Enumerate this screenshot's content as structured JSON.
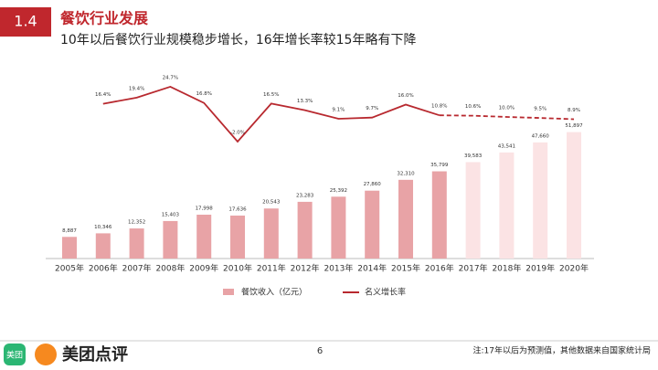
{
  "header": {
    "section": "1.4",
    "title": "餐饮行业发展",
    "subtitle": "10年以后餐饮行业规模稳步增长，16年增长率较15年略有下降"
  },
  "chart_data": {
    "type": "bar",
    "categories": [
      "2005年",
      "2006年",
      "2007年",
      "2008年",
      "2009年",
      "2010年",
      "2011年",
      "2012年",
      "2013年",
      "2014年",
      "2015年",
      "2016年",
      "2017年",
      "2018年",
      "2019年",
      "2020年"
    ],
    "ylim": [
      0,
      60000
    ],
    "y2lim": [
      -30,
      30
    ],
    "series": [
      {
        "name": "餐饮收入（亿元）",
        "color": "#e8a3a6",
        "colors": [
          "#e8a3a6",
          "#e8a3a6",
          "#e8a3a6",
          "#e8a3a6",
          "#e8a3a6",
          "#e8a3a6",
          "#e8a3a6",
          "#e8a3a6",
          "#e8a3a6",
          "#e8a3a6",
          "#e8a3a6",
          "#e8a3a6",
          "#fbe3e4",
          "#fbe3e4",
          "#fbe3e4",
          "#fbe3e4"
        ],
        "values": [
          8887,
          10346,
          12352,
          15403,
          17998,
          17636,
          20543,
          23283,
          25392,
          27860,
          32310,
          35799,
          39583,
          43541,
          47660,
          51897
        ],
        "value_labels": [
          "8,887",
          "10,346",
          "12,352",
          "15,403",
          "17,998",
          "17,636",
          "20,543",
          "23,283",
          "25,392",
          "27,860",
          "32,310",
          "35,799",
          "39,583",
          "43,541",
          "47,660",
          "51,897"
        ]
      },
      {
        "name": "名义增长率",
        "color": "#b8292f",
        "type": "line",
        "axis": "y2",
        "dash_from": 11,
        "values": [
          null,
          16.4,
          19.4,
          24.7,
          16.8,
          -2.0,
          16.5,
          13.3,
          9.1,
          9.7,
          16.0,
          10.8,
          10.6,
          10.0,
          9.5,
          8.9
        ],
        "value_labels": [
          null,
          "16.4%",
          "19.4%",
          "24.7%",
          "16.8%",
          "-2.0%",
          "16.5%",
          "13.3%",
          "9.1%",
          "9.7%",
          "16.0%",
          "10.8%",
          "10.6%",
          "10.0%",
          "9.5%",
          "8.9%"
        ]
      }
    ]
  },
  "footer": {
    "logo_icon": "美团",
    "logo_text": "美团点评",
    "page": "6",
    "note": "注:17年以后为预测值，其他数据来自国家统计局"
  }
}
